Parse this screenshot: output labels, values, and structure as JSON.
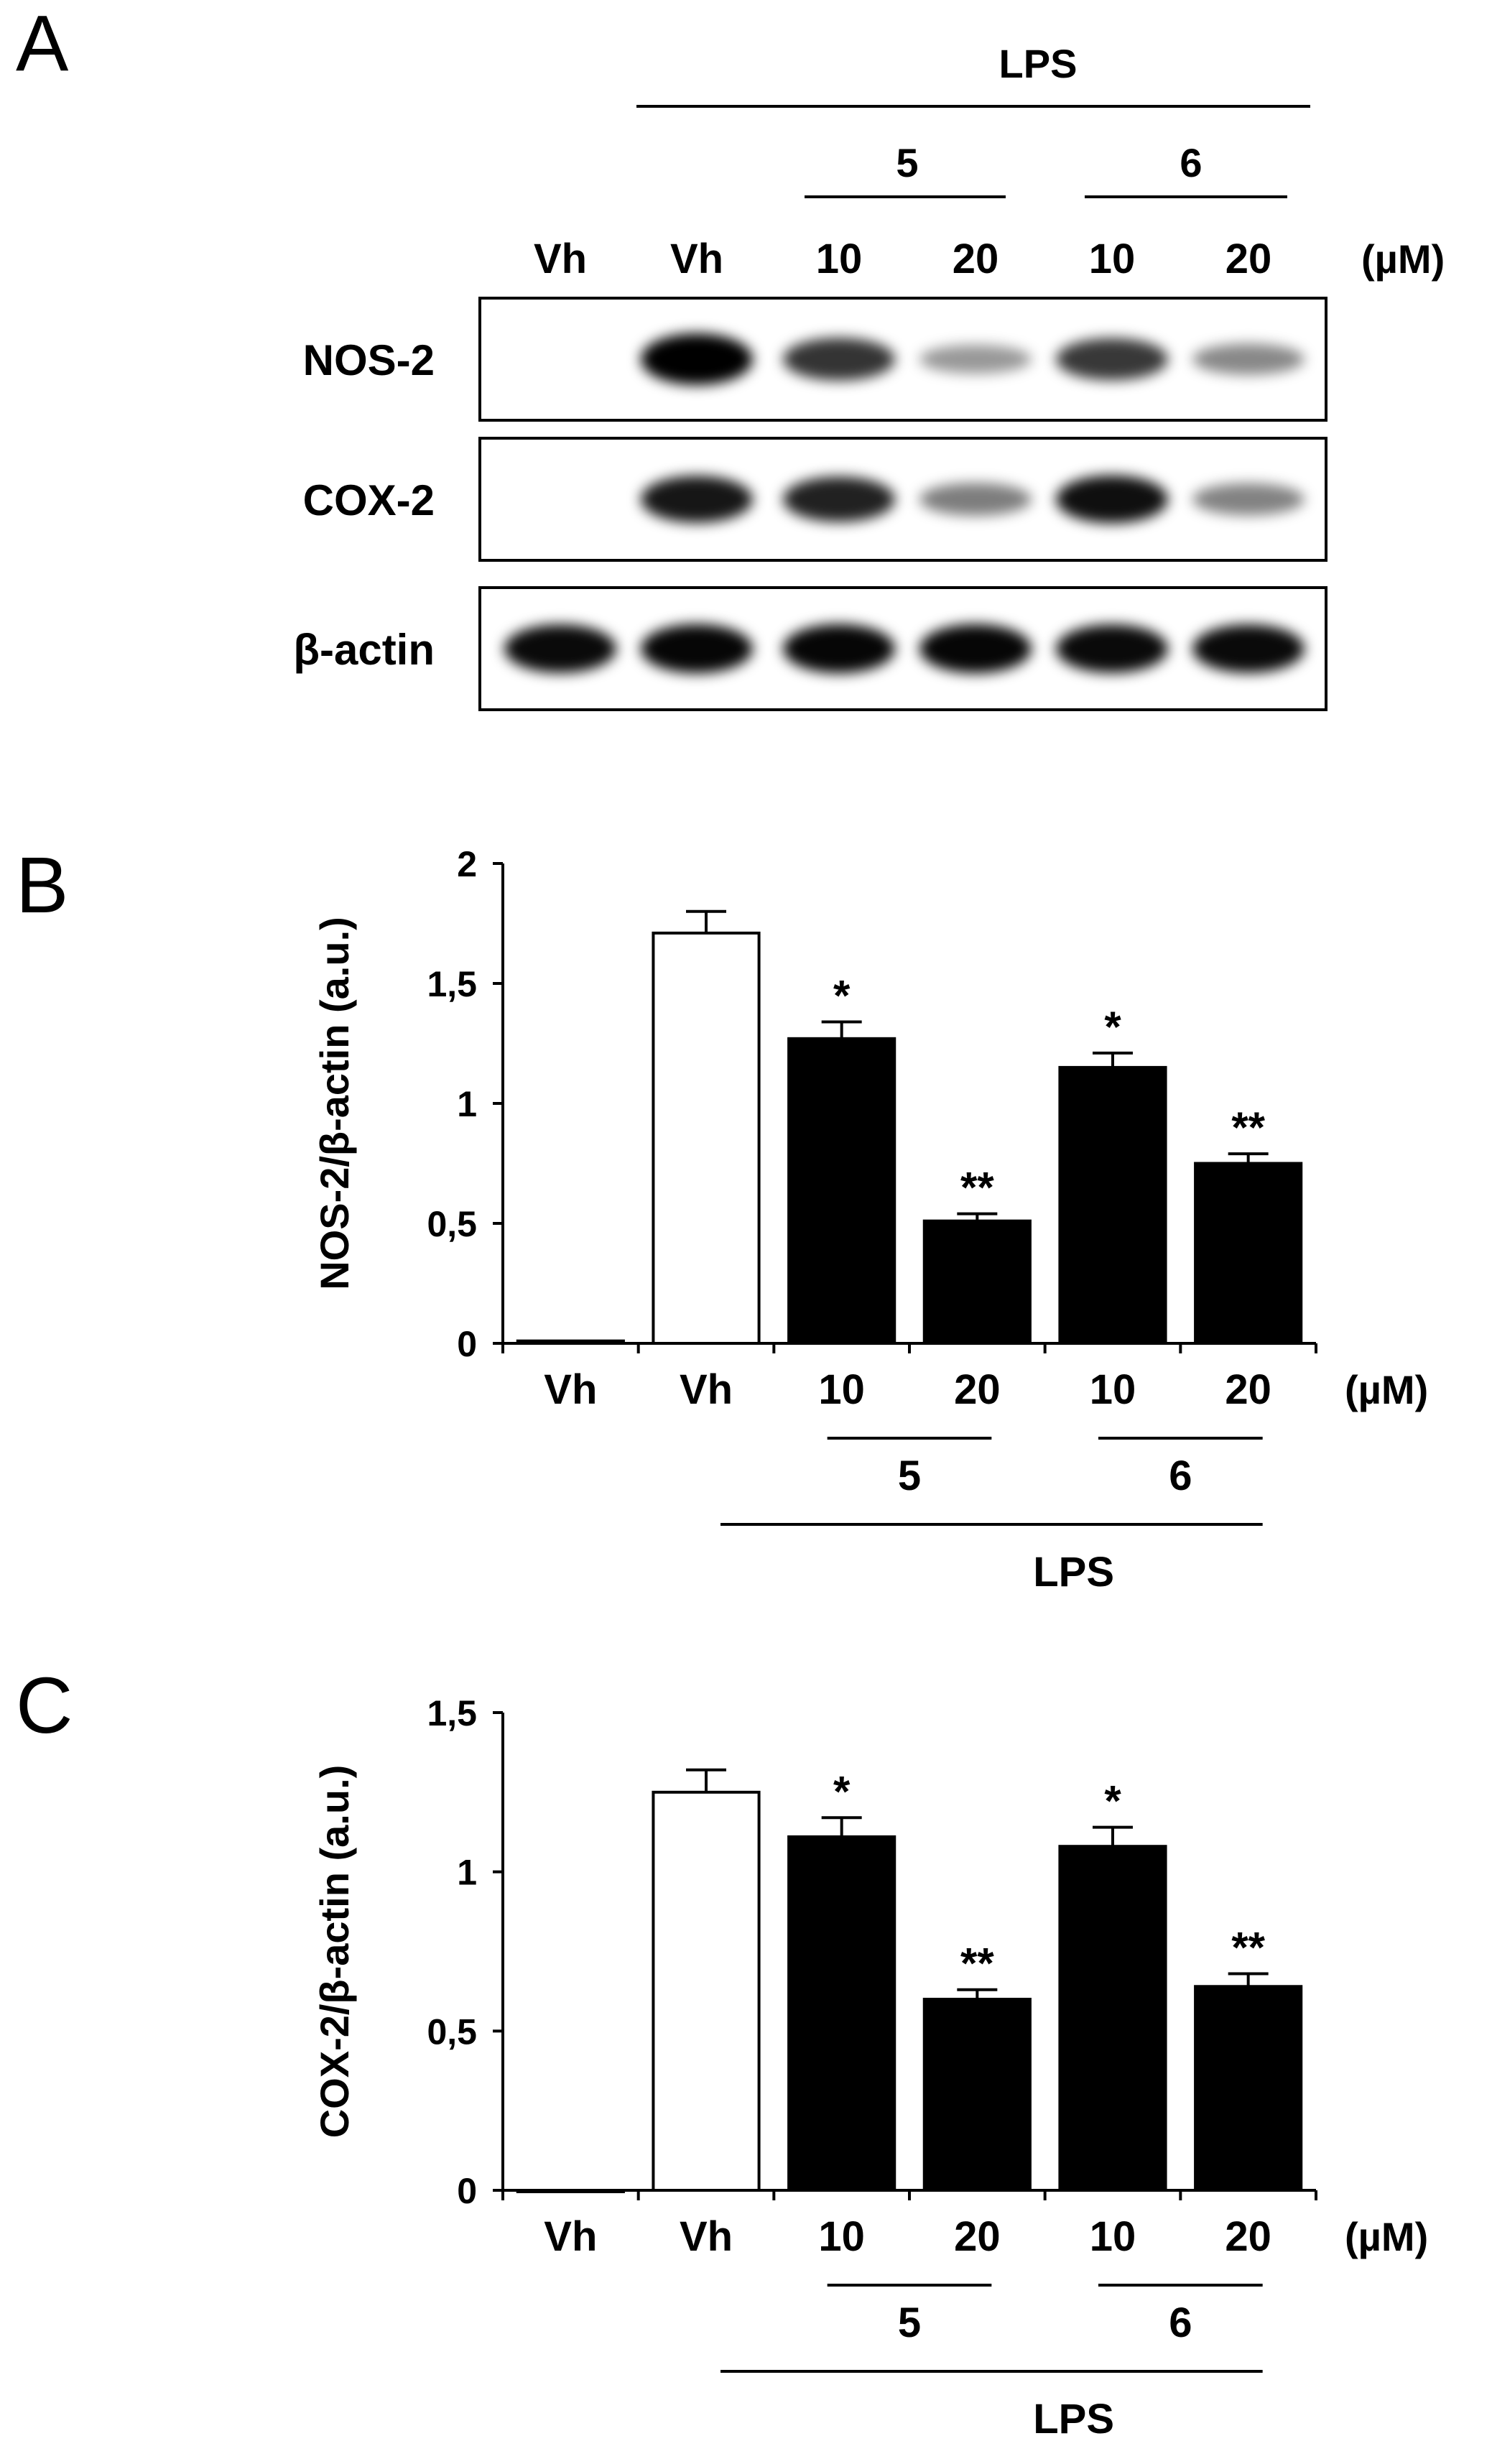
{
  "panels": {
    "A": {
      "letter": "A",
      "header": {
        "treatment": "LPS",
        "compound_a": "5",
        "compound_b": "6",
        "lanes": [
          "Vh",
          "Vh",
          "10",
          "20",
          "10",
          "20"
        ],
        "unit": "(µM)"
      },
      "blots": [
        {
          "label": "NOS-2",
          "band_intensity": [
            0.0,
            1.0,
            0.72,
            0.28,
            0.7,
            0.35
          ]
        },
        {
          "label": "COX-2",
          "band_intensity": [
            0.0,
            0.85,
            0.8,
            0.4,
            0.88,
            0.38
          ]
        },
        {
          "label": "β-actin",
          "band_intensity": [
            0.9,
            0.92,
            0.92,
            0.92,
            0.9,
            0.9
          ]
        }
      ]
    },
    "B": {
      "letter": "B"
    },
    "C": {
      "letter": "C"
    }
  },
  "chart_data": [
    {
      "type": "bar",
      "panel": "B",
      "ylabel": "NOS-2/β-actin (a.u.)",
      "ylim": [
        0,
        2
      ],
      "yticks": [
        "0",
        "0,5",
        "1",
        "1,5",
        "2"
      ],
      "ytick_values": [
        0,
        0.5,
        1,
        1.5,
        2
      ],
      "categories": [
        "Vh",
        "Vh",
        "10",
        "20",
        "10",
        "20"
      ],
      "unit": "(µM)",
      "group_labels": [
        "5",
        "6"
      ],
      "treatment_label": "LPS",
      "values": [
        0.01,
        1.71,
        1.27,
        0.51,
        1.15,
        0.75
      ],
      "errors": [
        0.0,
        0.09,
        0.07,
        0.03,
        0.06,
        0.04
      ],
      "bar_fill": [
        "#000000",
        "#ffffff",
        "#000000",
        "#000000",
        "#000000",
        "#000000"
      ],
      "significance": [
        "",
        "",
        "*",
        "**",
        "*",
        "**"
      ]
    },
    {
      "type": "bar",
      "panel": "C",
      "ylabel": "COX-2/β-actin (a.u.)",
      "ylim": [
        0,
        1.5
      ],
      "yticks": [
        "0",
        "0,5",
        "1",
        "1,5"
      ],
      "ytick_values": [
        0,
        0.5,
        1,
        1.5
      ],
      "categories": [
        "Vh",
        "Vh",
        "10",
        "20",
        "10",
        "20"
      ],
      "unit": "(µM)",
      "group_labels": [
        "5",
        "6"
      ],
      "treatment_label": "LPS",
      "values": [
        0.0,
        1.25,
        1.11,
        0.6,
        1.08,
        0.64
      ],
      "errors": [
        0.0,
        0.07,
        0.06,
        0.03,
        0.06,
        0.04
      ],
      "bar_fill": [
        "#000000",
        "#ffffff",
        "#000000",
        "#000000",
        "#000000",
        "#000000"
      ],
      "significance": [
        "",
        "",
        "*",
        "**",
        "*",
        "**"
      ]
    }
  ]
}
